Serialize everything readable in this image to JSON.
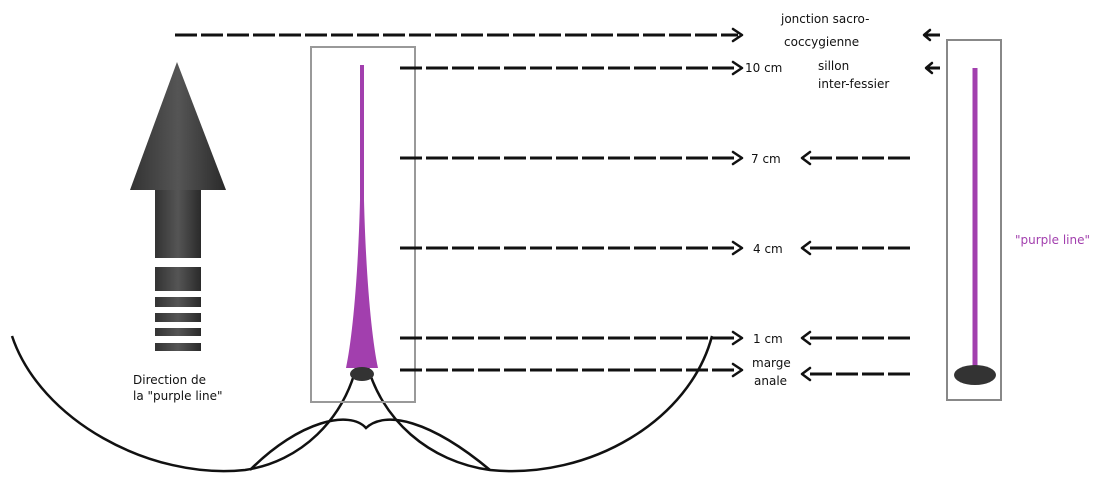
{
  "left_diagram": {
    "direction_label": [
      "Direction de",
      "la \"purple line\""
    ]
  },
  "levels": [
    {
      "lines": [
        "jonction sacro-",
        "coccygienne"
      ]
    },
    {
      "lines": [
        "10 cm"
      ]
    },
    {
      "lines": [
        "sillon",
        "inter-fessier"
      ]
    },
    {
      "lines": [
        "7 cm"
      ]
    },
    {
      "lines": [
        "4 cm"
      ]
    },
    {
      "lines": [
        "1 cm"
      ]
    },
    {
      "lines": [
        "marge",
        "anale"
      ]
    }
  ],
  "right_diagram": {
    "label": "\"purple line\""
  }
}
